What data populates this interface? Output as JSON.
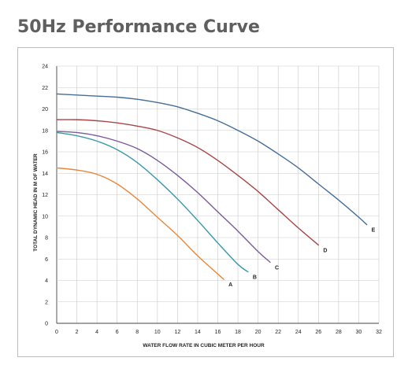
{
  "page": {
    "title": "50Hz Performance Curve"
  },
  "chart_data": {
    "type": "line",
    "title": "50Hz Performance Curve",
    "xlabel": "WATER FLOW RATE IN CUBIC METER PER HOUR",
    "ylabel": "TOTAL DYNAMIC HEAD IN M OF WATER",
    "xlim": [
      0,
      32
    ],
    "ylim": [
      0,
      24
    ],
    "x_ticks": [
      "0",
      "2",
      "4",
      "6",
      "8",
      "10",
      "12",
      "14",
      "16",
      "18",
      "20",
      "22",
      "24",
      "26",
      "28",
      "30",
      "32"
    ],
    "y_ticks": [
      "0",
      "2",
      "4",
      "6",
      "8",
      "10",
      "12",
      "14",
      "16",
      "18",
      "20",
      "22",
      "24"
    ],
    "grid": true,
    "series": [
      {
        "name": "A",
        "color": "#e8873a",
        "x": [
          0,
          2,
          4,
          6,
          8,
          10,
          12,
          14,
          16,
          16.6
        ],
        "y": [
          14.5,
          14.3,
          13.9,
          13.0,
          11.6,
          9.9,
          8.2,
          6.3,
          4.6,
          4.1
        ]
      },
      {
        "name": "B",
        "color": "#3a9aa8",
        "x": [
          0,
          2,
          4,
          6,
          8,
          10,
          12,
          14,
          16,
          18,
          19
        ],
        "y": [
          17.8,
          17.5,
          17.0,
          16.2,
          15.0,
          13.4,
          11.6,
          9.6,
          7.5,
          5.5,
          4.8
        ]
      },
      {
        "name": "C",
        "color": "#7a5a9a",
        "x": [
          0,
          2,
          4,
          6,
          8,
          10,
          12,
          14,
          16,
          18,
          20,
          21.2
        ],
        "y": [
          17.9,
          17.8,
          17.5,
          17.0,
          16.3,
          15.2,
          13.8,
          12.2,
          10.4,
          8.6,
          6.7,
          5.7
        ]
      },
      {
        "name": "D",
        "color": "#a84646",
        "x": [
          0,
          2,
          4,
          6,
          8,
          10,
          12,
          14,
          16,
          18,
          20,
          22,
          24,
          26
        ],
        "y": [
          19.0,
          19.0,
          18.9,
          18.7,
          18.4,
          18.0,
          17.3,
          16.4,
          15.2,
          13.8,
          12.3,
          10.6,
          8.9,
          7.3
        ]
      },
      {
        "name": "E",
        "color": "#466e96",
        "x": [
          0,
          2,
          4,
          6,
          8,
          10,
          12,
          14,
          16,
          18,
          20,
          22,
          24,
          26,
          28,
          30,
          30.8
        ],
        "y": [
          21.4,
          21.3,
          21.2,
          21.1,
          20.9,
          20.6,
          20.2,
          19.6,
          18.9,
          18.0,
          17.0,
          15.8,
          14.5,
          13.0,
          11.5,
          9.9,
          9.2
        ]
      }
    ]
  }
}
